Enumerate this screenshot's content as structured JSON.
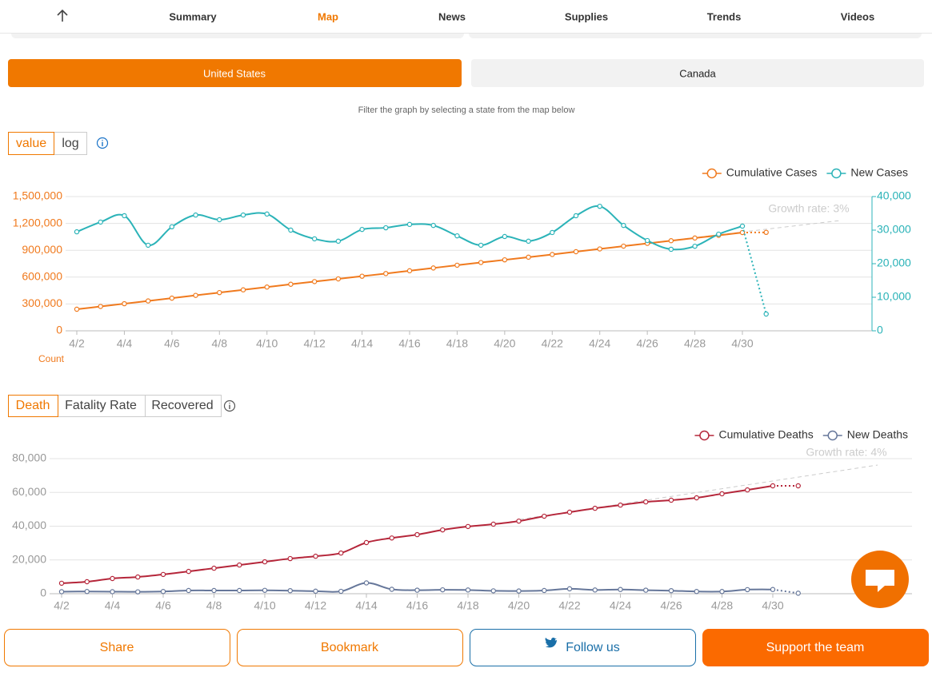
{
  "nav": {
    "items": [
      "Summary",
      "Map",
      "News",
      "Supplies",
      "Trends",
      "Videos"
    ]
  },
  "regions": [
    "United States",
    "Canada"
  ],
  "filter_hint": "Filter the graph by selecting a state from the map below",
  "scale_toggle": [
    "value",
    "log"
  ],
  "metric_toggle": [
    "Death",
    "Fatality Rate",
    "Recovered"
  ],
  "actions": [
    "Share",
    "Bookmark",
    "Follow us",
    "Support the team"
  ],
  "chart_data": [
    {
      "type": "line",
      "categories": [
        "4/2",
        null,
        "4/4",
        null,
        "4/6",
        null,
        "4/8",
        null,
        "4/10",
        null,
        "4/12",
        null,
        "4/14",
        null,
        "4/16",
        null,
        "4/18",
        null,
        "4/20",
        null,
        "4/22",
        null,
        "4/24",
        null,
        "4/26",
        null,
        "4/28",
        null,
        "4/30",
        null
      ],
      "series": [
        {
          "name": "Cumulative Cases",
          "color": "#f07a1e",
          "values": [
            241000,
            272000,
            303000,
            334000,
            365000,
            396000,
            427000,
            458000,
            489000,
            520000,
            550000,
            580000,
            610000,
            640000,
            671000,
            702000,
            733000,
            763000,
            793000,
            823000,
            853000,
            884000,
            915000,
            946000,
            977000,
            1007000,
            1037000,
            1067000,
            1098000,
            1100000
          ]
        },
        {
          "name": "New Cases",
          "color": "#2bb3b8",
          "axis": "y2",
          "values": [
            29500,
            32400,
            34300,
            25500,
            31000,
            34500,
            33100,
            34500,
            34800,
            30000,
            27400,
            26700,
            30200,
            30700,
            31700,
            31400,
            28300,
            25500,
            28100,
            26700,
            29300,
            34300,
            37100,
            31400,
            26900,
            24300,
            25200,
            28800,
            31200,
            5000
          ]
        }
      ],
      "ylim": [
        0,
        1500000
      ],
      "yticks": [
        0,
        {
          "value": 300000,
          "label": "300,000"
        },
        {
          "value": 600000,
          "label": "600,000"
        },
        {
          "value": 900000,
          "label": "900,000"
        },
        {
          "value": 1200000,
          "label": "1,200,000"
        },
        {
          "value": 1500000,
          "label": "1,500,000"
        }
      ],
      "y2lim": [
        0,
        40000
      ],
      "y2ticks": [
        0,
        {
          "value": 10000,
          "label": "10,000"
        },
        {
          "value": 20000,
          "label": "20,000"
        },
        {
          "value": 30000,
          "label": "30,000"
        },
        {
          "value": 40000,
          "label": "40,000"
        }
      ],
      "y_axis_label": "Count",
      "annotation": "Growth rate: 3%",
      "grid": true,
      "legend": "top-right"
    },
    {
      "type": "line",
      "categories": [
        "4/2",
        null,
        "4/4",
        null,
        "4/6",
        null,
        "4/8",
        null,
        "4/10",
        null,
        "4/12",
        null,
        "4/14",
        null,
        "4/16",
        null,
        "4/18",
        null,
        "4/20",
        null,
        "4/22",
        null,
        "4/24",
        null,
        "4/26",
        null,
        "4/28",
        null,
        "4/30",
        null
      ],
      "series": [
        {
          "name": "Cumulative Deaths",
          "color": "#b5263a",
          "values": [
            6200,
            7100,
            9000,
            9900,
            11400,
            13200,
            15100,
            17000,
            18900,
            20800,
            22200,
            24100,
            30300,
            33000,
            35000,
            37800,
            39800,
            41200,
            43000,
            45900,
            48300,
            50600,
            52500,
            54400,
            55400,
            56800,
            59200,
            61500,
            63900,
            63900
          ]
        },
        {
          "name": "New Deaths",
          "color": "#66779a",
          "values": [
            1200,
            1300,
            1200,
            1100,
            1300,
            1900,
            1900,
            1900,
            2000,
            1800,
            1500,
            1400,
            6400,
            2600,
            2100,
            2300,
            2200,
            1700,
            1600,
            1900,
            2900,
            2200,
            2500,
            2100,
            1800,
            1300,
            1300,
            2400,
            2500,
            300
          ]
        }
      ],
      "ylim": [
        0,
        80000
      ],
      "yticks": [
        0,
        {
          "value": 20000,
          "label": "20,000"
        },
        {
          "value": 40000,
          "label": "40,000"
        },
        {
          "value": 60000,
          "label": "60,000"
        },
        {
          "value": 80000,
          "label": "80,000"
        }
      ],
      "annotation": "Growth rate: 4%",
      "grid": true,
      "legend": "top-right"
    }
  ]
}
